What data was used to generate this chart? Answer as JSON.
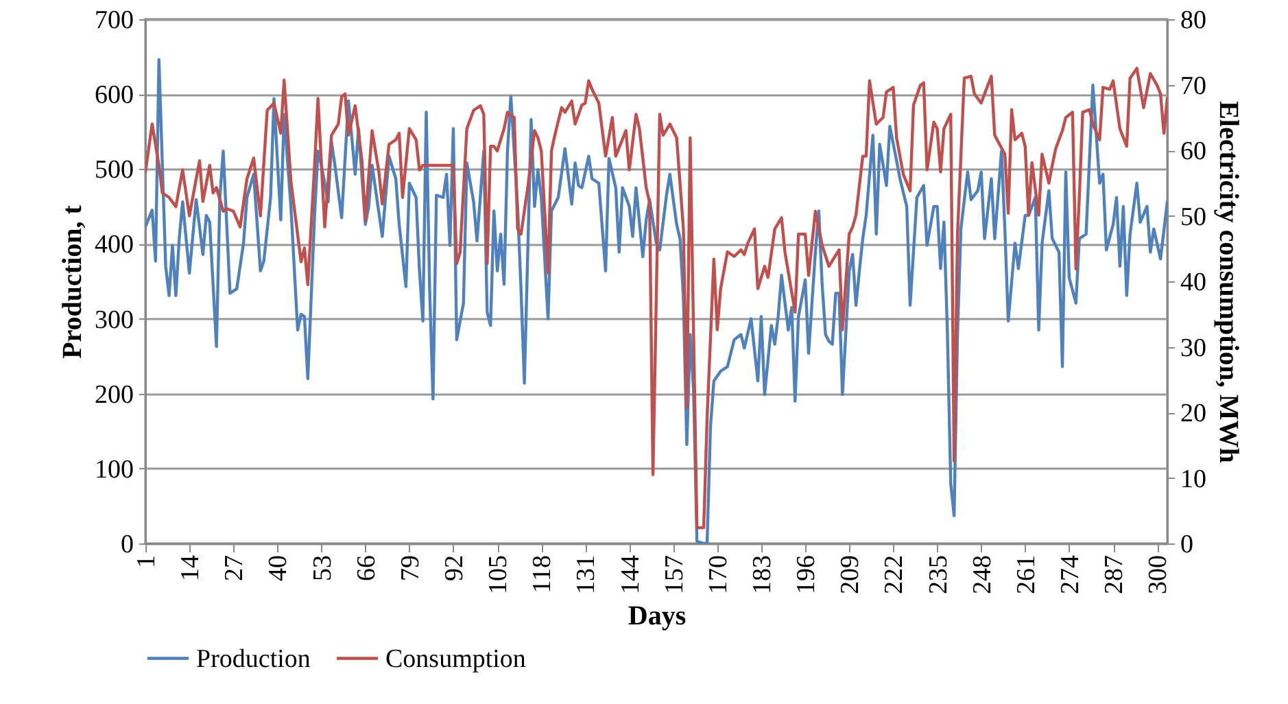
{
  "chart_data": {
    "type": "line",
    "xlabel": "Days",
    "ylabel": "Production, t",
    "y2label": "Electricity consumption, MWh",
    "xlim": [
      1,
      303
    ],
    "xticks": [
      1,
      14,
      27,
      40,
      53,
      66,
      79,
      92,
      105,
      118,
      131,
      144,
      157,
      170,
      183,
      196,
      209,
      222,
      235,
      248,
      261,
      274,
      287,
      300
    ],
    "ylim": [
      0,
      700
    ],
    "yticks": [
      0,
      100,
      200,
      300,
      400,
      500,
      600,
      700
    ],
    "y2lim": [
      0,
      80
    ],
    "y2ticks": [
      0,
      10,
      20,
      30,
      40,
      50,
      60,
      70,
      80
    ],
    "grid": "y",
    "legend": "bottom",
    "marker": "none",
    "line_style": "solid",
    "series": [
      {
        "name": "Production",
        "color": "#4f81bd",
        "x": [
          1,
          3,
          4,
          5,
          7,
          8,
          9,
          10,
          11,
          12,
          14,
          16,
          18,
          19,
          20,
          22,
          23,
          24,
          26,
          28,
          30,
          31,
          33,
          35,
          36,
          38,
          39,
          41,
          42,
          44,
          46,
          47,
          48,
          49,
          51,
          52,
          53,
          55,
          56,
          57,
          59,
          61,
          63,
          64,
          66,
          67,
          68,
          71,
          73,
          75,
          76,
          78,
          79,
          81,
          82,
          83,
          84,
          85,
          86,
          87,
          89,
          90,
          91,
          92,
          93,
          95,
          96,
          98,
          99,
          101,
          102,
          103,
          104,
          105,
          106,
          107,
          108,
          109,
          110,
          111,
          112,
          113,
          115,
          116,
          117,
          118,
          120,
          121,
          123,
          125,
          127,
          128,
          129,
          130,
          132,
          133,
          135,
          137,
          138,
          140,
          141,
          142,
          144,
          145,
          146,
          148,
          149,
          150,
          152,
          153,
          155,
          156,
          158,
          159,
          160,
          161,
          162,
          163,
          164,
          166,
          167,
          168,
          169,
          171,
          173,
          175,
          177,
          178,
          180,
          182,
          183,
          184,
          186,
          187,
          188,
          189,
          191,
          192,
          193,
          194,
          196,
          197,
          199,
          200,
          201,
          202,
          203,
          204,
          205,
          206,
          207,
          209,
          210,
          211,
          212,
          213,
          214,
          216,
          217,
          218,
          220,
          221,
          223,
          224,
          226,
          227,
          229,
          231,
          232,
          234,
          235,
          236,
          237,
          238,
          239,
          240,
          241,
          242,
          244,
          245,
          247,
          248,
          249,
          251,
          252,
          254,
          255,
          256,
          258,
          259,
          261,
          262,
          264,
          265,
          266,
          268,
          269,
          271,
          272,
          273,
          274,
          276,
          277,
          279,
          281,
          283,
          284,
          285,
          287,
          288,
          289,
          290,
          291,
          292,
          294,
          295,
          297,
          298,
          299,
          301,
          303
        ],
        "values": [
          423,
          445,
          377,
          646,
          370,
          331,
          398,
          331,
          407,
          456,
          361,
          459,
          386,
          438,
          429,
          263,
          462,
          524,
          334,
          340,
          401,
          462,
          493,
          364,
          377,
          462,
          594,
          432,
          573,
          450,
          285,
          306,
          303,
          220,
          438,
          524,
          505,
          456,
          536,
          505,
          435,
          591,
          493,
          554,
          426,
          450,
          505,
          410,
          517,
          487,
          426,
          343,
          481,
          462,
          364,
          297,
          576,
          340,
          193,
          465,
          462,
          493,
          398,
          554,
          272,
          321,
          508,
          456,
          404,
          524,
          309,
          291,
          444,
          364,
          413,
          346,
          524,
          597,
          524,
          450,
          340,
          214,
          566,
          450,
          499,
          462,
          300,
          444,
          462,
          527,
          453,
          508,
          478,
          475,
          517,
          487,
          481,
          364,
          514,
          475,
          389,
          475,
          450,
          410,
          475,
          383,
          432,
          459,
          401,
          392,
          465,
          493,
          426,
          407,
          328,
          132,
          279,
          205,
          3,
          0,
          0,
          156,
          217,
          230,
          236,
          272,
          279,
          261,
          300,
          217,
          303,
          199,
          291,
          266,
          303,
          358,
          285,
          315,
          190,
          303,
          352,
          254,
          389,
          444,
          346,
          279,
          270,
          266,
          334,
          334,
          199,
          364,
          386,
          318,
          364,
          407,
          438,
          545,
          413,
          533,
          478,
          557,
          511,
          487,
          450,
          318,
          462,
          478,
          398,
          450,
          450,
          367,
          429,
          285,
          80,
          37,
          279,
          420,
          496,
          459,
          471,
          496,
          407,
          487,
          407,
          524,
          420,
          297,
          401,
          367,
          438,
          438,
          462,
          285,
          401,
          471,
          407,
          389,
          236,
          496,
          355,
          321,
          407,
          413,
          612,
          481,
          493,
          392,
          426,
          462,
          370,
          450,
          331,
          413,
          481,
          429,
          450,
          389,
          420,
          380,
          456
        ]
      },
      {
        "name": "Consumption",
        "color": "#c0504d",
        "axis": "y2",
        "x": [
          1,
          3,
          5,
          6,
          8,
          10,
          12,
          14,
          17,
          18,
          20,
          21,
          22,
          24,
          25,
          27,
          29,
          31,
          33,
          35,
          37,
          39,
          41,
          42,
          44,
          47,
          48,
          49,
          51,
          52,
          54,
          56,
          58,
          59,
          60,
          61,
          63,
          65,
          66,
          68,
          70,
          71,
          73,
          75,
          76,
          77,
          79,
          81,
          82,
          83,
          92,
          93,
          94,
          96,
          98,
          100,
          101,
          102,
          103,
          104,
          105,
          107,
          108,
          110,
          111,
          112,
          114,
          116,
          117,
          118,
          120,
          121,
          122,
          124,
          125,
          127,
          128,
          130,
          131,
          132,
          133,
          135,
          137,
          139,
          140,
          143,
          144,
          146,
          147,
          149,
          150,
          151,
          153,
          154,
          156,
          158,
          160,
          161,
          162,
          164,
          166,
          167,
          169,
          170,
          171,
          173,
          175,
          177,
          178,
          179,
          181,
          182,
          184,
          185,
          187,
          189,
          190,
          193,
          194,
          196,
          197,
          199,
          201,
          203,
          206,
          207,
          209,
          210,
          211,
          213,
          214,
          215,
          217,
          219,
          220,
          222,
          223,
          225,
          227,
          228,
          230,
          231,
          232,
          234,
          235,
          236,
          237,
          239,
          240,
          241,
          243,
          245,
          246,
          248,
          249,
          251,
          252,
          253,
          255,
          256,
          257,
          258,
          260,
          261,
          262,
          263,
          265,
          266,
          268,
          269,
          270,
          272,
          273,
          275,
          276,
          277,
          278,
          280,
          281,
          283,
          284,
          286,
          287,
          289,
          291,
          292,
          294,
          296,
          298,
          300,
          301,
          302,
          303
        ],
        "values": [
          56.7,
          64.0,
          57.7,
          53.5,
          52.8,
          51.4,
          57.0,
          50.0,
          58.4,
          52.2,
          57.7,
          53.5,
          54.3,
          50.7,
          51.1,
          50.7,
          48.3,
          55.6,
          58.8,
          50.0,
          66.1,
          67.2,
          62.6,
          70.7,
          55.3,
          43.0,
          45.1,
          39.5,
          57.7,
          67.9,
          48.3,
          62.3,
          64.0,
          68.2,
          68.6,
          62.3,
          66.8,
          58.4,
          49.3,
          63.0,
          56.7,
          51.8,
          60.9,
          61.6,
          62.6,
          52.8,
          63.3,
          61.6,
          57.0,
          57.7,
          57.7,
          42.7,
          44.4,
          63.3,
          66.1,
          66.8,
          65.5,
          42.7,
          60.6,
          60.6,
          59.9,
          63.3,
          65.8,
          65.0,
          48.0,
          47.2,
          54.3,
          63.0,
          61.9,
          59.9,
          41.3,
          59.9,
          62.3,
          66.5,
          65.8,
          67.5,
          64.0,
          66.9,
          67.2,
          70.6,
          69.3,
          67.2,
          59.1,
          65.0,
          59.1,
          63.0,
          57.0,
          65.5,
          63.3,
          54.3,
          52.1,
          10.5,
          65.5,
          62.3,
          64.0,
          61.9,
          48.0,
          20.7,
          61.9,
          2.4,
          2.4,
          19.2,
          43.4,
          32.6,
          38.9,
          44.5,
          43.8,
          44.8,
          44.1,
          45.8,
          48.0,
          38.9,
          42.3,
          40.6,
          48.0,
          49.7,
          44.5,
          35.3,
          47.2,
          47.2,
          40.9,
          50.7,
          45.5,
          42.3,
          44.8,
          32.6,
          47.2,
          48.3,
          50.1,
          59.1,
          59.1,
          70.6,
          64.0,
          65.0,
          68.9,
          69.6,
          61.9,
          56.3,
          53.8,
          66.9,
          69.9,
          70.3,
          57.0,
          64.3,
          63.3,
          56.7,
          63.3,
          65.5,
          12.6,
          47.2,
          71.0,
          71.3,
          68.6,
          67.2,
          68.6,
          71.3,
          62.3,
          61.3,
          59.4,
          50.4,
          66.2,
          61.6,
          62.6,
          60.6,
          50.1,
          58.1,
          50.1,
          59.4,
          55.0,
          57.7,
          60.2,
          63.0,
          65.0,
          65.8,
          41.9,
          52.8,
          65.8,
          66.2,
          64.0,
          61.6,
          69.6,
          69.3,
          70.6,
          63.3,
          60.6,
          71.0,
          72.5,
          66.5,
          71.7,
          69.9,
          68.6,
          62.6,
          67.9
        ]
      }
    ]
  }
}
